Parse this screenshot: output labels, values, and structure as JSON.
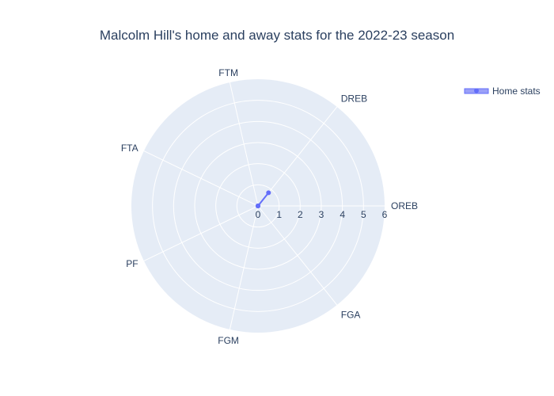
{
  "chart_data": {
    "type": "radar",
    "title": "Malcolm Hill's home and away stats for the 2022-23 season",
    "categories": [
      "OREB",
      "DREB",
      "FTM",
      "FTA",
      "PF",
      "FGM",
      "FGA"
    ],
    "radial_range": [
      0,
      6
    ],
    "radial_ticks": [
      "0",
      "1",
      "2",
      "3",
      "4",
      "5",
      "6"
    ],
    "series": [
      {
        "name": "Home stats",
        "values": [
          0,
          0.8,
          0,
          0,
          0,
          0,
          0
        ],
        "closed": false
      }
    ],
    "legend_position": "top-right",
    "colors": {
      "polar_bg": "#e5ecf6",
      "grid": "#ffffff",
      "text": "#2a3f5f",
      "series": "#636efa",
      "legend_fill": "#9aa0f8"
    }
  }
}
